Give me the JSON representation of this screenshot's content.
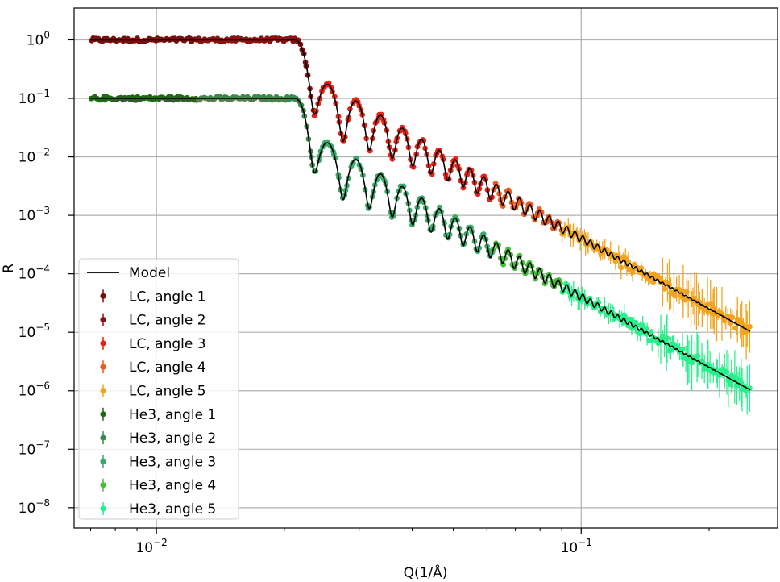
{
  "chart_data": {
    "type": "scatter",
    "title": "",
    "xlabel": "Q(1/Å)",
    "ylabel": "R",
    "xscale": "log",
    "yscale": "log",
    "xlim": [
      0.0064,
      0.29
    ],
    "ylim": [
      4.5e-09,
      3.5
    ],
    "grid": true,
    "legend_position": "lower-left",
    "x_ticks": [
      {
        "value": 0.01,
        "base": "10",
        "exp": "−2"
      },
      {
        "value": 0.1,
        "base": "10",
        "exp": "−1"
      }
    ],
    "y_ticks": [
      {
        "value": 1,
        "base": "10",
        "exp": "0"
      },
      {
        "value": 0.1,
        "base": "10",
        "exp": "−1"
      },
      {
        "value": 0.01,
        "base": "10",
        "exp": "−2"
      },
      {
        "value": 0.001,
        "base": "10",
        "exp": "−3"
      },
      {
        "value": 0.0001,
        "base": "10",
        "exp": "−4"
      },
      {
        "value": 1e-05,
        "base": "10",
        "exp": "−5"
      },
      {
        "value": 1e-06,
        "base": "10",
        "exp": "−6"
      },
      {
        "value": 1e-07,
        "base": "10",
        "exp": "−7"
      },
      {
        "value": 1e-08,
        "base": "10",
        "exp": "−8"
      }
    ],
    "model": {
      "name": "Model",
      "color": "#000000",
      "q_range": [
        0.007,
        0.25
      ],
      "qc": 0.0212,
      "plateau_LC": 1.0,
      "plateau_He3": 0.1,
      "fringe_period": 0.0042,
      "high_q_LC": 1.6e-06,
      "high_q_He3": 1.6e-07
    },
    "series": [
      {
        "name": "LC, angle 1",
        "color": "#7a0d0d",
        "q_range": [
          0.007,
          0.0125
        ]
      },
      {
        "name": "LC, angle 2",
        "color": "#8b1212",
        "q_range": [
          0.0125,
          0.0235
        ]
      },
      {
        "name": "LC, angle 3",
        "color": "#e82316",
        "q_range": [
          0.0235,
          0.062
        ]
      },
      {
        "name": "LC, angle 4",
        "color": "#ee5a20",
        "q_range": [
          0.062,
          0.09
        ]
      },
      {
        "name": "LC, angle 5",
        "color": "#f3a41c",
        "q_range": [
          0.09,
          0.25
        ]
      },
      {
        "name": "He3, angle 1",
        "color": "#1e6b12",
        "q_range": [
          0.007,
          0.0125
        ]
      },
      {
        "name": "He3, angle 2",
        "color": "#3a8a4e",
        "q_range": [
          0.0125,
          0.0235
        ]
      },
      {
        "name": "He3, angle 3",
        "color": "#3aaa6a",
        "q_range": [
          0.0235,
          0.062
        ]
      },
      {
        "name": "He3, angle 4",
        "color": "#45be3a",
        "q_range": [
          0.062,
          0.09
        ]
      },
      {
        "name": "He3, angle 5",
        "color": "#28f08a",
        "q_range": [
          0.09,
          0.25
        ]
      }
    ]
  }
}
